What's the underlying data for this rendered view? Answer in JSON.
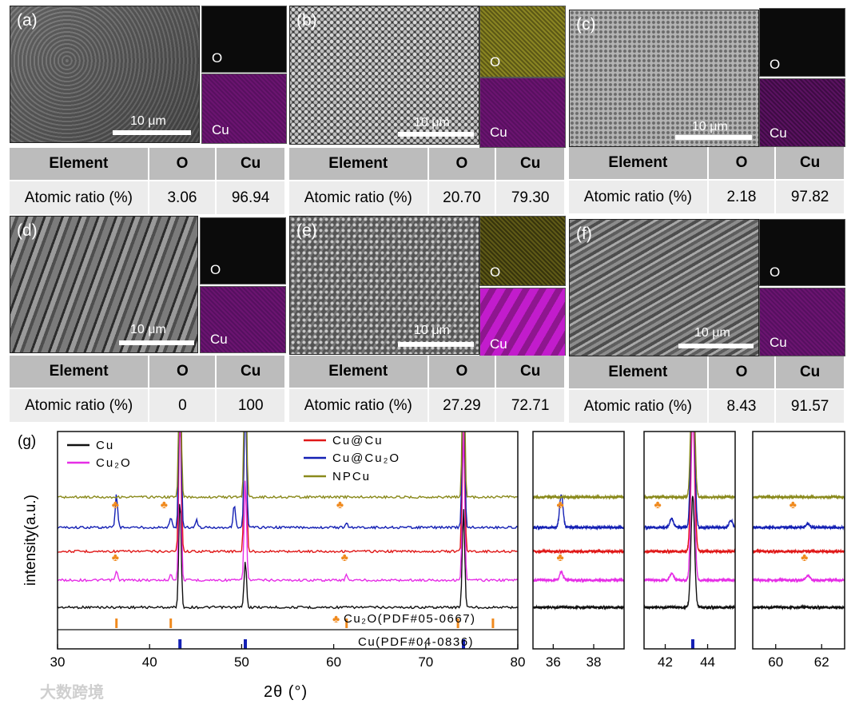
{
  "panels": [
    {
      "label": "(a)",
      "scale": "10 μm",
      "maps": [
        "O",
        "Cu"
      ],
      "table": {
        "headers": [
          "Element",
          "O",
          "Cu"
        ],
        "row_label": "Atomic ratio (%)",
        "O": "3.06",
        "Cu": "96.94"
      }
    },
    {
      "label": "(b)",
      "scale": "10 μm",
      "maps": [
        "O",
        "Cu"
      ],
      "table": {
        "headers": [
          "Element",
          "O",
          "Cu"
        ],
        "row_label": "Atomic ratio (%)",
        "O": "20.70",
        "Cu": "79.30"
      }
    },
    {
      "label": "(c)",
      "scale": "10 μm",
      "maps": [
        "O",
        "Cu"
      ],
      "table": {
        "headers": [
          "Element",
          "O",
          "Cu"
        ],
        "row_label": "Atomic ratio (%)",
        "O": "2.18",
        "Cu": "97.82"
      }
    },
    {
      "label": "(d)",
      "scale": "10 μm",
      "maps": [
        "O",
        "Cu"
      ],
      "table": {
        "headers": [
          "Element",
          "O",
          "Cu"
        ],
        "row_label": "Atomic ratio (%)",
        "O": "0",
        "Cu": "100"
      }
    },
    {
      "label": "(e)",
      "scale": "10 μm",
      "maps": [
        "O",
        "Cu"
      ],
      "table": {
        "headers": [
          "Element",
          "O",
          "Cu"
        ],
        "row_label": "Atomic ratio (%)",
        "O": "27.29",
        "Cu": "72.71"
      }
    },
    {
      "label": "(f)",
      "scale": "10 μm",
      "maps": [
        "O",
        "Cu"
      ],
      "table": {
        "headers": [
          "Element",
          "O",
          "Cu"
        ],
        "row_label": "Atomic ratio (%)",
        "O": "8.43",
        "Cu": "91.57"
      }
    }
  ],
  "colors": {
    "O_map_yellow": "#6f6a1a",
    "Cu_map": "#6b1470",
    "dark_map": "#0b0b0b"
  },
  "chart_data": {
    "type": "line",
    "panel_label": "(g)",
    "xlabel": "2θ (°)",
    "ylabel": "intensity(a.u.)",
    "subplots": [
      {
        "xlim": [
          30,
          80
        ],
        "ticks": [
          30,
          40,
          50,
          60,
          70,
          80
        ]
      },
      {
        "xlim": [
          35,
          39.5
        ],
        "ticks": [
          36,
          38
        ]
      },
      {
        "xlim": [
          41,
          45.3
        ],
        "ticks": [
          42,
          44
        ]
      },
      {
        "xlim": [
          59,
          63
        ],
        "ticks": [
          60,
          62
        ]
      }
    ],
    "legend": [
      "Cu",
      "Cu₂O",
      "Cu@Cu",
      "Cu@Cu₂O",
      "NPCu"
    ],
    "series": [
      {
        "name": "Cu",
        "color": "#111111",
        "offset": 0,
        "peaks": [
          [
            43.3,
            1.0
          ],
          [
            50.4,
            0.42
          ],
          [
            74.1,
            0.9
          ]
        ]
      },
      {
        "name": "Cu₂O",
        "color": "#e62ee6",
        "offset": 1,
        "peaks": [
          [
            36.4,
            0.05
          ],
          [
            42.3,
            0.04
          ],
          [
            43.3,
            1.0
          ],
          [
            50.4,
            0.6
          ],
          [
            61.4,
            0.03
          ],
          [
            74.1,
            0.9
          ]
        ]
      },
      {
        "name": "Cu@Cu",
        "color": "#e01818",
        "offset": 2,
        "peaks": [
          [
            43.3,
            1.0
          ],
          [
            50.4,
            1.0
          ],
          [
            74.1,
            1.0
          ]
        ]
      },
      {
        "name": "Cu@Cu₂O",
        "color": "#1420b4",
        "offset": 3,
        "peaks": [
          [
            36.4,
            0.18
          ],
          [
            42.3,
            0.05
          ],
          [
            43.3,
            1.0
          ],
          [
            45.1,
            0.04
          ],
          [
            49.2,
            0.12
          ],
          [
            50.4,
            0.7
          ],
          [
            61.4,
            0.02
          ],
          [
            74.1,
            1.0
          ]
        ]
      },
      {
        "name": "NPCu",
        "color": "#8a8a1c",
        "offset": 4,
        "peaks": [
          [
            43.3,
            1.0
          ],
          [
            50.4,
            1.0
          ],
          [
            74.1,
            1.0
          ]
        ]
      }
    ],
    "reference_cu2o": {
      "label": "Cu₂O(PDF#05-0667)",
      "positions": [
        36.4,
        42.3,
        61.4,
        73.5,
        77.3
      ],
      "color": "#f08a1e"
    },
    "reference_cu": {
      "label": "Cu(PDF#04-0836)",
      "positions": [
        43.3,
        50.4,
        74.1
      ],
      "color": "#1420b4"
    },
    "markers": [
      {
        "series": "Cu@Cu₂O",
        "x": [
          36.4,
          41.7,
          60.8
        ]
      },
      {
        "series": "Cu₂O",
        "x": [
          36.4,
          61.3
        ]
      }
    ],
    "marker_symbol": "♣",
    "marker_color": "#f08a1e"
  },
  "watermark": "大数跨境"
}
